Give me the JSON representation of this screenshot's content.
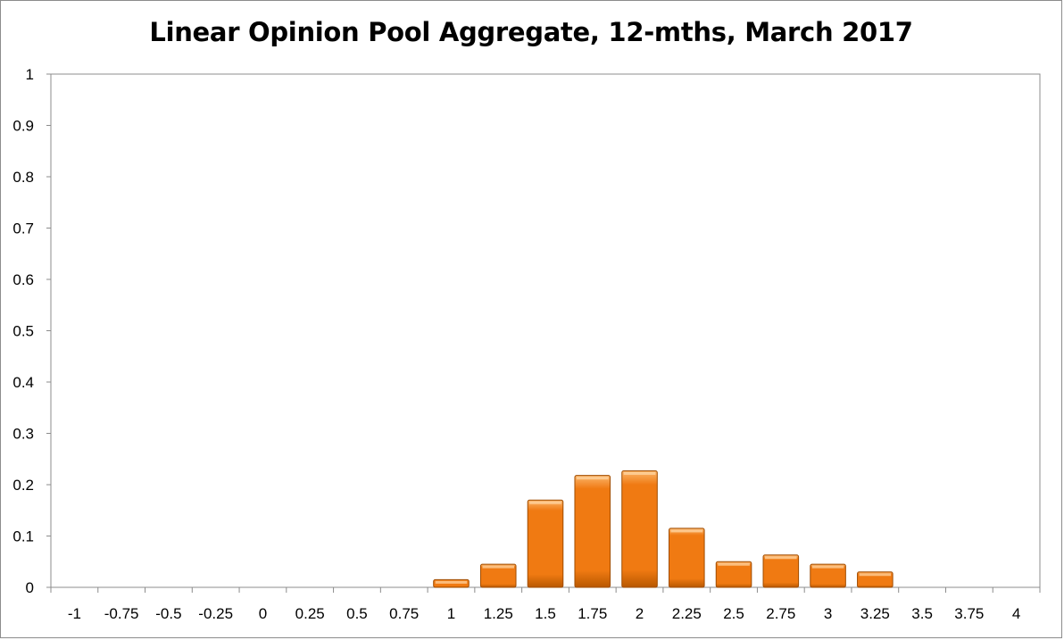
{
  "chart_data": {
    "type": "bar",
    "title": "Linear Opinion Pool Aggregate, 12-mths, March 2017",
    "xlabel": "",
    "ylabel": "",
    "categories": [
      "-1",
      "-0.75",
      "-0.5",
      "-0.25",
      "0",
      "0.25",
      "0.5",
      "0.75",
      "1",
      "1.25",
      "1.5",
      "1.75",
      "2",
      "2.25",
      "2.5",
      "2.75",
      "3",
      "3.25",
      "3.5",
      "3.75",
      "4"
    ],
    "values": [
      0,
      0,
      0,
      0,
      0,
      0,
      0,
      0,
      0.015,
      0.045,
      0.17,
      0.218,
      0.227,
      0.115,
      0.05,
      0.063,
      0.045,
      0.03,
      0,
      0,
      0
    ],
    "ylim": [
      0,
      1
    ],
    "yticks": [
      "0",
      "0.1",
      "0.2",
      "0.3",
      "0.4",
      "0.5",
      "0.6",
      "0.7",
      "0.8",
      "0.9",
      "1"
    ],
    "grid": false,
    "legend": "none",
    "colors": {
      "bar_top": "#fbb56b",
      "bar_mid": "#f07a12",
      "bar_bottom": "#b85800",
      "bar_edge": "#a04c00",
      "axis": "#8c8c8c"
    }
  }
}
